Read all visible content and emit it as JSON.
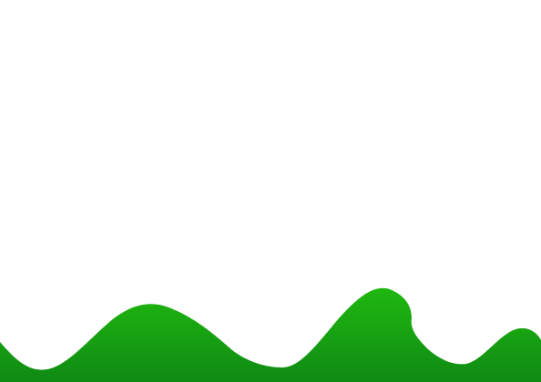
{
  "scene": {
    "background_color": "#ffffff",
    "terrain": {
      "color_top": "#1fb80f",
      "color_bottom": "#0f8a14"
    }
  }
}
